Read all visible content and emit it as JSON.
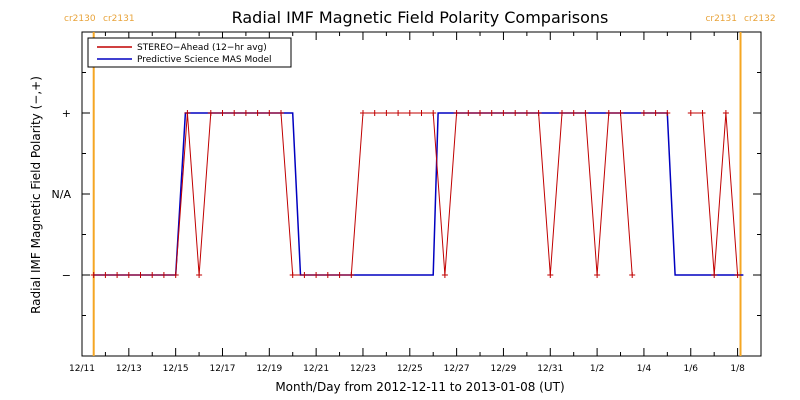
{
  "chart_data": {
    "type": "line",
    "title": "Radial IMF Magnetic Field Polarity Comparisons",
    "xlabel": "Month/Day from 2012-12-11 to 2013-01-08 (UT)",
    "ylabel": "Radial IMF Magnetic Field Polarity (−,+)",
    "x_start": "2012-12-11",
    "x_end": "2013-01-09",
    "x_tick_labels": [
      "12/11",
      "12/13",
      "12/15",
      "12/17",
      "12/19",
      "12/21",
      "12/23",
      "12/25",
      "12/27",
      "12/29",
      "12/31",
      "1/2",
      "1/4",
      "1/6",
      "1/8"
    ],
    "y_categories": [
      "−",
      "N/A",
      "+"
    ],
    "y_values_meaning": {
      "-1": "−",
      "0": "N/A",
      "1": "+"
    },
    "ylim": [
      -2,
      2
    ],
    "legend": {
      "position": "top-left",
      "entries": [
        "STEREO−Ahead (12−hr avg)",
        "Predictive Science MAS Model"
      ]
    },
    "carrington_markers": [
      {
        "date": "2012-12-11T12:00",
        "labels": [
          "cr2130",
          "cr2131"
        ],
        "color": "#f5a623"
      },
      {
        "date": "2013-01-08T03:00",
        "labels": [
          "cr2131",
          "cr2132"
        ],
        "color": "#f5a623"
      }
    ],
    "series": [
      {
        "name": "STEREO−Ahead (12−hr avg)",
        "color": "#c00000",
        "segments": [
          [
            [
              "2012-12-11T12:00",
              -1
            ],
            [
              "2012-12-12T00:00",
              -1
            ],
            [
              "2012-12-12T12:00",
              -1
            ],
            [
              "2012-12-13T00:00",
              -1
            ],
            [
              "2012-12-13T12:00",
              -1
            ],
            [
              "2012-12-14T00:00",
              -1
            ],
            [
              "2012-12-14T12:00",
              -1
            ],
            [
              "2012-12-15T00:00",
              -1
            ],
            [
              "2012-12-15T12:00",
              1
            ],
            [
              "2012-12-16T00:00",
              -1
            ],
            [
              "2012-12-16T12:00",
              1
            ],
            [
              "2012-12-17T00:00",
              1
            ],
            [
              "2012-12-17T12:00",
              1
            ],
            [
              "2012-12-18T00:00",
              1
            ],
            [
              "2012-12-18T12:00",
              1
            ],
            [
              "2012-12-19T00:00",
              1
            ],
            [
              "2012-12-19T12:00",
              1
            ],
            [
              "2012-12-20T00:00",
              -1
            ],
            [
              "2012-12-20T12:00",
              -1
            ],
            [
              "2012-12-21T00:00",
              -1
            ],
            [
              "2012-12-21T12:00",
              -1
            ],
            [
              "2012-12-22T00:00",
              -1
            ],
            [
              "2012-12-22T12:00",
              -1
            ],
            [
              "2012-12-23T00:00",
              1
            ],
            [
              "2012-12-23T12:00",
              1
            ],
            [
              "2012-12-24T00:00",
              1
            ],
            [
              "2012-12-24T12:00",
              1
            ],
            [
              "2012-12-25T00:00",
              1
            ],
            [
              "2012-12-25T12:00",
              1
            ],
            [
              "2012-12-26T00:00",
              1
            ],
            [
              "2012-12-26T12:00",
              -1
            ],
            [
              "2012-12-27T00:00",
              1
            ],
            [
              "2012-12-27T12:00",
              1
            ],
            [
              "2012-12-28T00:00",
              1
            ],
            [
              "2012-12-28T12:00",
              1
            ],
            [
              "2012-12-29T00:00",
              1
            ],
            [
              "2012-12-29T12:00",
              1
            ],
            [
              "2012-12-30T00:00",
              1
            ],
            [
              "2012-12-30T12:00",
              1
            ],
            [
              "2012-12-31T00:00",
              -1
            ],
            [
              "2012-12-31T12:00",
              1
            ],
            [
              "2013-01-01T00:00",
              1
            ],
            [
              "2013-01-01T12:00",
              1
            ],
            [
              "2013-01-02T00:00",
              -1
            ],
            [
              "2013-01-02T12:00",
              1
            ],
            [
              "2013-01-03T00:00",
              1
            ],
            [
              "2013-01-03T12:00",
              -1
            ]
          ],
          [
            [
              "2013-01-04T00:00",
              1
            ],
            [
              "2013-01-04T12:00",
              1
            ],
            [
              "2013-01-05T00:00",
              1
            ]
          ],
          [
            [
              "2013-01-06T00:00",
              1
            ],
            [
              "2013-01-06T12:00",
              1
            ],
            [
              "2013-01-07T00:00",
              -1
            ],
            [
              "2013-01-07T12:00",
              1
            ],
            [
              "2013-01-08T00:00",
              -1
            ]
          ]
        ]
      },
      {
        "name": "Predictive Science MAS Model",
        "color": "#0000c0",
        "points": [
          [
            "2012-12-11T12:00",
            -1
          ],
          [
            "2012-12-15T00:00",
            -1
          ],
          [
            "2012-12-15T10:00",
            1
          ],
          [
            "2012-12-20T00:00",
            1
          ],
          [
            "2012-12-20T08:00",
            -1
          ],
          [
            "2012-12-26T00:00",
            -1
          ],
          [
            "2012-12-26T05:00",
            1
          ],
          [
            "2013-01-05T00:00",
            1
          ],
          [
            "2013-01-05T08:00",
            -1
          ],
          [
            "2013-01-08T06:00",
            -1
          ]
        ]
      }
    ]
  }
}
